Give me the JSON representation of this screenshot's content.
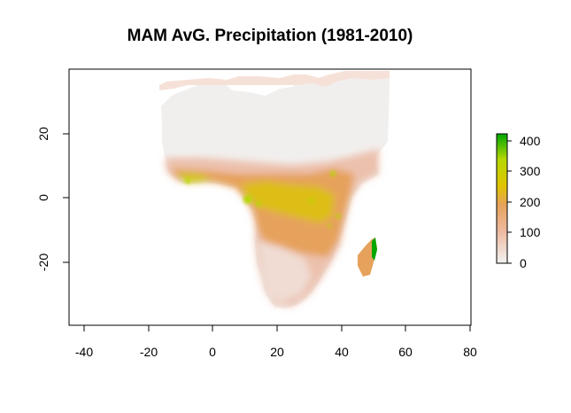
{
  "title": "MAM AvG. Precipitation (1981-2010)",
  "x_axis": {
    "ticks": [
      "-40",
      "-20",
      "0",
      "20",
      "40",
      "60",
      "80"
    ],
    "range": [
      -45,
      80
    ]
  },
  "y_axis": {
    "ticks": [
      "20",
      "0",
      "-20"
    ],
    "range": [
      -40,
      40
    ]
  },
  "legend": {
    "ticks": [
      "400",
      "300",
      "200",
      "100",
      "0"
    ],
    "range": [
      0,
      430
    ],
    "colors": [
      "#f2f2f2",
      "#eeb99f",
      "#e6a25c",
      "#e1c500",
      "#b6d800",
      "#00a600"
    ]
  }
}
